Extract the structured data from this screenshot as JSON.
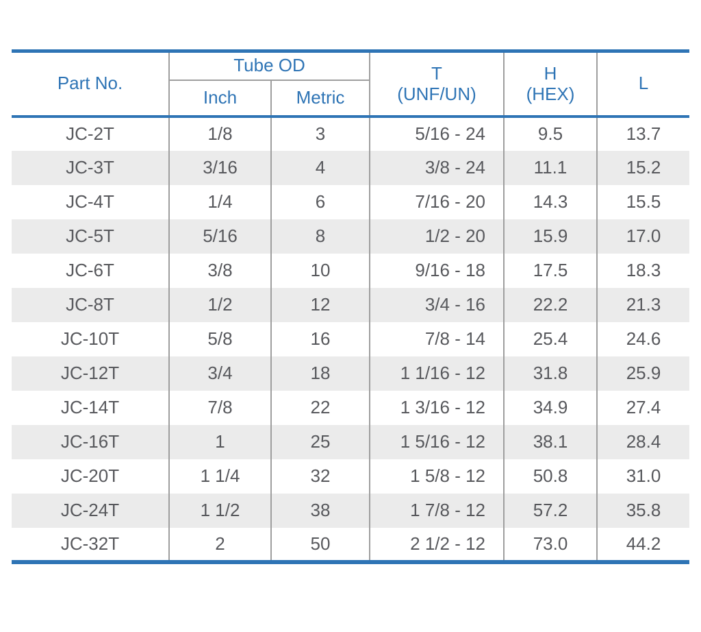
{
  "table": {
    "headers": {
      "part_no": "Part No.",
      "tube_od": "Tube OD",
      "inch": "Inch",
      "metric": "Metric",
      "t_line1": "T",
      "t_line2": "(UNF/UN)",
      "h_line1": "H",
      "h_line2": "(HEX)",
      "l": "L"
    },
    "rows": [
      {
        "part": "JC-2T",
        "inch": "1/8",
        "metric": "3",
        "t": "5/16 - 24",
        "h": "9.5",
        "l": "13.7"
      },
      {
        "part": "JC-3T",
        "inch": "3/16",
        "metric": "4",
        "t": "3/8 - 24",
        "h": "11.1",
        "l": "15.2"
      },
      {
        "part": "JC-4T",
        "inch": "1/4",
        "metric": "6",
        "t": "7/16 - 20",
        "h": "14.3",
        "l": "15.5"
      },
      {
        "part": "JC-5T",
        "inch": "5/16",
        "metric": "8",
        "t": "1/2 - 20",
        "h": "15.9",
        "l": "17.0"
      },
      {
        "part": "JC-6T",
        "inch": "3/8",
        "metric": "10",
        "t": "9/16 - 18",
        "h": "17.5",
        "l": "18.3"
      },
      {
        "part": "JC-8T",
        "inch": "1/2",
        "metric": "12",
        "t": "3/4 - 16",
        "h": "22.2",
        "l": "21.3"
      },
      {
        "part": "JC-10T",
        "inch": "5/8",
        "metric": "16",
        "t": "7/8 - 14",
        "h": "25.4",
        "l": "24.6"
      },
      {
        "part": "JC-12T",
        "inch": "3/4",
        "metric": "18",
        "t": "1 1/16 - 12",
        "h": "31.8",
        "l": "25.9"
      },
      {
        "part": "JC-14T",
        "inch": "7/8",
        "metric": "22",
        "t": "1 3/16 - 12",
        "h": "34.9",
        "l": "27.4"
      },
      {
        "part": "JC-16T",
        "inch": "1",
        "metric": "25",
        "t": "1 5/16 - 12",
        "h": "38.1",
        "l": "28.4"
      },
      {
        "part": "JC-20T",
        "inch": "1 1/4",
        "metric": "32",
        "t": "1 5/8 - 12",
        "h": "50.8",
        "l": "31.0"
      },
      {
        "part": "JC-24T",
        "inch": "1 1/2",
        "metric": "38",
        "t": "1 7/8 - 12",
        "h": "57.2",
        "l": "35.8"
      },
      {
        "part": "JC-32T",
        "inch": "2",
        "metric": "50",
        "t": "2 1/2 - 12",
        "h": "73.0",
        "l": "44.2"
      }
    ]
  },
  "colors": {
    "line_blue": "#2e74b5",
    "header_text_blue": "#2e74b5",
    "body_text_gray": "#57585c",
    "row_stripe_gray": "#ebebeb",
    "divider_gray": "#9e9e9e"
  }
}
